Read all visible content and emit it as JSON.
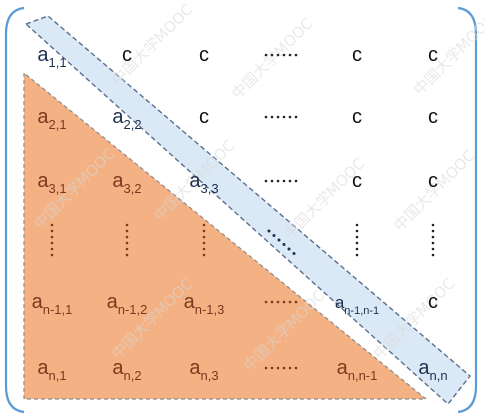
{
  "matrix": {
    "bracket_color": "#5b9bd5",
    "lower_region_fill": "#f4b183",
    "diagonal_band_fill": "#dbe8f5",
    "rows": [
      [
        {
          "base": "a",
          "sub": "1,1",
          "region": "diag"
        },
        {
          "base": "c",
          "region": "upper"
        },
        {
          "base": "c",
          "region": "upper"
        },
        {
          "dots": "h",
          "region": "upper"
        },
        {
          "base": "c",
          "region": "upper"
        },
        {
          "base": "c",
          "region": "upper"
        }
      ],
      [
        {
          "base": "a",
          "sub": "2,1",
          "region": "lower"
        },
        {
          "base": "a",
          "sub": "2,2",
          "region": "diag"
        },
        {
          "base": "c",
          "region": "upper"
        },
        {
          "dots": "h",
          "region": "upper"
        },
        {
          "base": "c",
          "region": "upper"
        },
        {
          "base": "c",
          "region": "upper"
        }
      ],
      [
        {
          "base": "a",
          "sub": "3,1",
          "region": "lower"
        },
        {
          "base": "a",
          "sub": "3,2",
          "region": "lower"
        },
        {
          "base": "a",
          "sub": "3,3",
          "region": "diag"
        },
        {
          "dots": "h",
          "region": "upper"
        },
        {
          "base": "c",
          "region": "upper"
        },
        {
          "base": "c",
          "region": "upper"
        }
      ],
      [
        {
          "dots": "v",
          "region": "lower"
        },
        {
          "dots": "v",
          "region": "lower"
        },
        {
          "dots": "v",
          "region": "lower"
        },
        {
          "dots": "d",
          "region": "diag"
        },
        {
          "dots": "v",
          "region": "upper"
        },
        {
          "dots": "v",
          "region": "upper"
        }
      ],
      [
        {
          "base": "a",
          "sub": "n-1,1",
          "region": "lower"
        },
        {
          "base": "a",
          "sub": "n-1,2",
          "region": "lower"
        },
        {
          "base": "a",
          "sub": "n-1,3",
          "region": "lower"
        },
        {
          "dots": "h",
          "region": "lower"
        },
        {
          "base": "a",
          "sub": "n-1,n-1",
          "region": "diag",
          "small": true
        },
        {
          "base": "c",
          "region": "upper"
        }
      ],
      [
        {
          "base": "a",
          "sub": "n,1",
          "region": "lower"
        },
        {
          "base": "a",
          "sub": "n,2",
          "region": "lower"
        },
        {
          "base": "a",
          "sub": "n,3",
          "region": "lower"
        },
        {
          "dots": "h",
          "region": "lower"
        },
        {
          "base": "a",
          "sub": "n,n-1",
          "region": "lower"
        },
        {
          "base": "a",
          "sub": "n,n",
          "region": "diag"
        }
      ]
    ]
  },
  "watermark": {
    "text": "中国大学MOOC"
  }
}
